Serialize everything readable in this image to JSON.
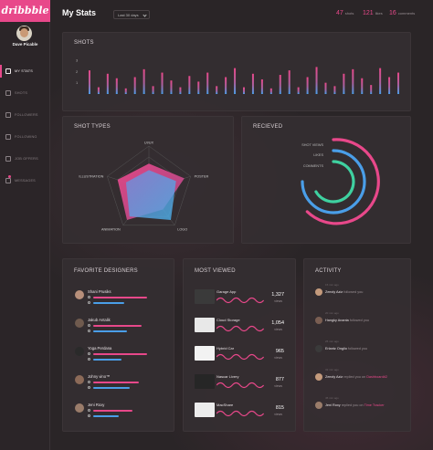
{
  "brand": {
    "logo_text": "dribbble",
    "accent": "#e8488a",
    "blue": "#4a9ee8",
    "green": "#3fd1a0"
  },
  "user": {
    "name": "Dave Picable"
  },
  "sidebar": {
    "items": [
      {
        "label": "MY STATS",
        "icon": "chart-icon",
        "active": true
      },
      {
        "label": "SHOTS",
        "icon": "ball-icon"
      },
      {
        "label": "FOLLOWERS",
        "icon": "users-icon"
      },
      {
        "label": "FOLLOWING",
        "icon": "user-check-icon"
      },
      {
        "label": "JOB OFFERS",
        "icon": "briefcase-icon"
      },
      {
        "label": "MESSAGES",
        "icon": "message-icon"
      }
    ]
  },
  "header": {
    "title": "My Stats",
    "range_value": "Last 30 days",
    "stats": [
      {
        "num": "47",
        "label": "shots"
      },
      {
        "num": "121",
        "label": "likes"
      },
      {
        "num": "16",
        "label": "comments"
      }
    ]
  },
  "shots": {
    "title": "SHOTS",
    "ticks": [
      "3",
      "2",
      "1"
    ],
    "bars": [
      2.1,
      0.6,
      1.8,
      1.4,
      0.5,
      1.5,
      2.2,
      0.7,
      1.9,
      1.2,
      0.6,
      1.6,
      1.1,
      1.9,
      0.7,
      1.5,
      2.3,
      0.6,
      1.8,
      1.3,
      0.5,
      1.7,
      2.1,
      0.6,
      1.5,
      2.4,
      1.0,
      0.7,
      1.8,
      2.2,
      1.4,
      0.8,
      2.3,
      1.5,
      1.9
    ]
  },
  "shot_types": {
    "title": "SHOT TYPES",
    "axes": [
      "UI/UX",
      "POSTER",
      "LOGO",
      "ANIMATION",
      "ILLUSTRATION"
    ],
    "pink": [
      0.6,
      0.85,
      0.55,
      0.85,
      0.75
    ],
    "blue": [
      0.45,
      0.65,
      0.85,
      0.75,
      0.55
    ]
  },
  "received": {
    "title": "RECIEVED",
    "labels": [
      "SHOT VIEWS",
      "LIKES",
      "COMMENTS"
    ]
  },
  "favorite_designers": {
    "title": "FAVORITE DESIGNERS",
    "items": [
      {
        "name": "Shani Prusiks",
        "a": 0.95,
        "b": 0.55
      },
      {
        "name": "Jakub Antalik",
        "a": 0.85,
        "b": 0.6
      },
      {
        "name": "Yoga Perdana",
        "a": 0.95,
        "b": 0.5
      },
      {
        "name": "Johny vino™",
        "a": 0.8,
        "b": 0.65
      },
      {
        "name": "Jeni Roxy",
        "a": 0.7,
        "b": 0.45
      }
    ]
  },
  "most_viewed": {
    "title": "MOST VIEWED",
    "unit": "views",
    "items": [
      {
        "name": "Garage App",
        "views": "1,327"
      },
      {
        "name": "Cloud Storage",
        "views": "1,054"
      },
      {
        "name": "Hybrid Car",
        "views": "965"
      },
      {
        "name": "Nascar Livery",
        "views": "877"
      },
      {
        "name": "MacShare",
        "views": "815"
      }
    ]
  },
  "activity": {
    "title": "ACTIVITY",
    "items": [
      {
        "time": "15 min ago",
        "who": "Zeezly Aziz",
        "action": "followed you",
        "target": ""
      },
      {
        "time": "20 min ago",
        "who": "Hangky Ananta",
        "action": "followed you",
        "target": ""
      },
      {
        "time": "25 min ago",
        "who": "Erlantz Onglio",
        "action": "followed you",
        "target": ""
      },
      {
        "time": "32 min ago",
        "who": "Zeezly Aziz",
        "action": "replied you on",
        "target": "Dashboard#2"
      },
      {
        "time": "45 min ago",
        "who": "Jeni Roxy",
        "action": "replied you on",
        "target": "Time Tracker"
      }
    ]
  }
}
